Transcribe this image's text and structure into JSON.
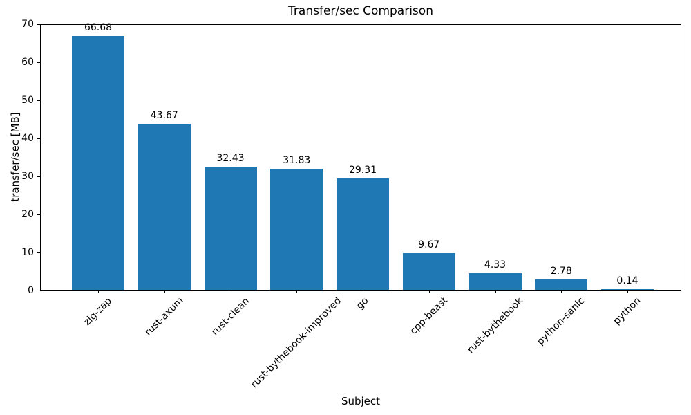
{
  "chart_data": {
    "type": "bar",
    "title": "Transfer/sec Comparison",
    "xlabel": "Subject",
    "ylabel": "transfer/sec [MB]",
    "categories": [
      "zig-zap",
      "rust-axum",
      "rust-clean",
      "rust-bythebook-improved",
      "go",
      "cpp-beast",
      "rust-bythebook",
      "python-sanic",
      "python"
    ],
    "values": [
      66.68,
      43.67,
      32.43,
      31.83,
      29.31,
      9.67,
      4.33,
      2.78,
      0.14
    ],
    "bar_labels": [
      "66.68",
      "43.67",
      "32.43",
      "31.83",
      "29.31",
      "9.67",
      "4.33",
      "2.78",
      "0.14"
    ],
    "ylim": [
      0,
      70
    ],
    "yticks": [
      0,
      10,
      20,
      30,
      40,
      50,
      60,
      70
    ],
    "grid": false,
    "legend": null,
    "bar_color": "#1f77b4"
  },
  "colors": {
    "bar": "#1f77b4",
    "text": "#000000",
    "spine": "#000000",
    "background": "#ffffff"
  }
}
